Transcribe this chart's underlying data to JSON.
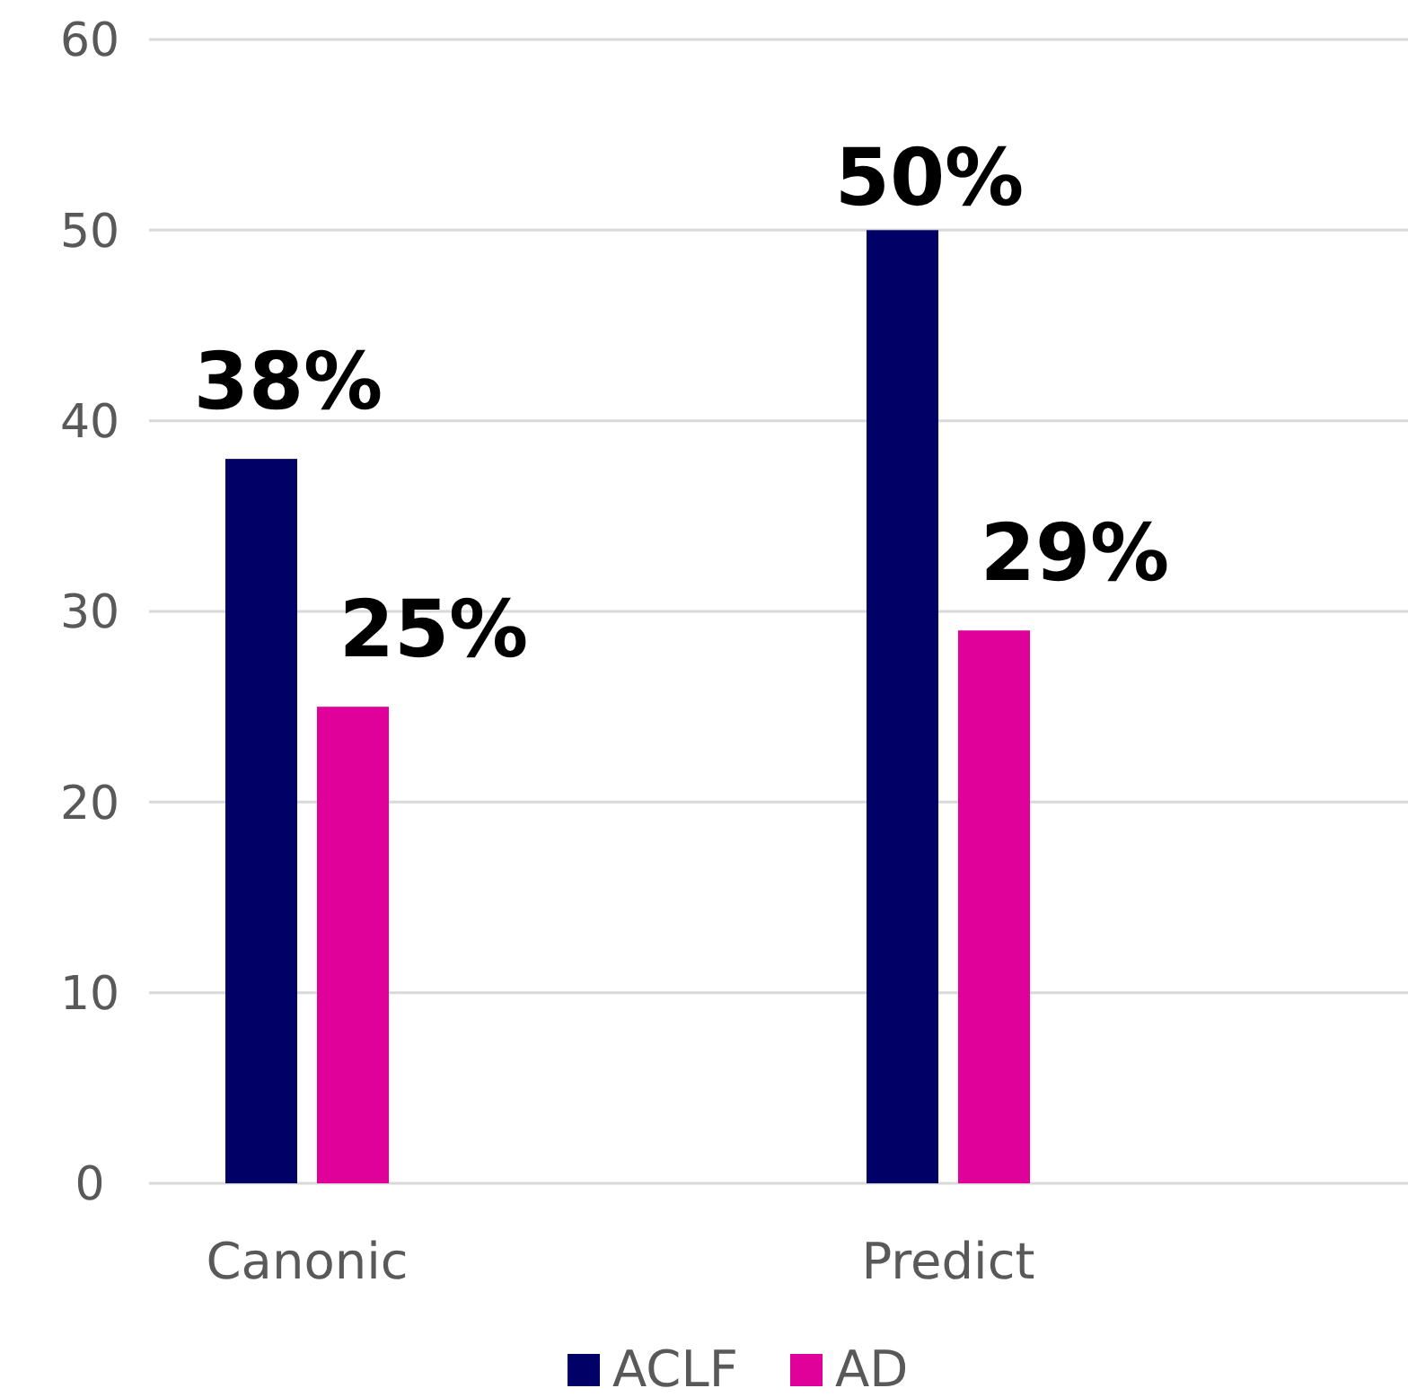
{
  "chart_data": {
    "type": "bar",
    "categories": [
      "Canonic",
      "Predict"
    ],
    "series": [
      {
        "name": "ACLF",
        "color": "#000066",
        "values": [
          38,
          50
        ],
        "value_labels": [
          "38%",
          "50%"
        ]
      },
      {
        "name": "AD",
        "color": "#e0009a",
        "values": [
          25,
          29
        ],
        "value_labels": [
          "25%",
          "29%"
        ]
      }
    ],
    "ylim": [
      0,
      60
    ],
    "yticks": [
      0,
      10,
      20,
      30,
      40,
      50,
      60
    ],
    "grid": "y",
    "legend": "bottom"
  }
}
